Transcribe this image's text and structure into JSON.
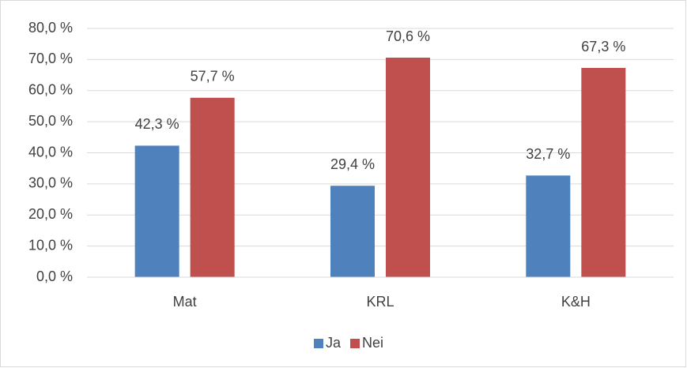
{
  "chart_data": {
    "type": "bar",
    "categories": [
      "Mat",
      "KRL",
      "K&H"
    ],
    "series": [
      {
        "name": "Ja",
        "color": "#4f81bd",
        "values": [
          42.3,
          29.4,
          32.7
        ],
        "value_labels": [
          "42,3 %",
          "29,4 %",
          "32,7 %"
        ]
      },
      {
        "name": "Nei",
        "color": "#c0504d",
        "values": [
          57.7,
          70.6,
          67.3
        ],
        "value_labels": [
          "57,7 %",
          "70,6 %",
          "67,3 %"
        ]
      }
    ],
    "ylim": [
      0,
      80
    ],
    "yticks": [
      {
        "value": 0,
        "label": "0,0 %"
      },
      {
        "value": 10,
        "label": "10,0 %"
      },
      {
        "value": 20,
        "label": "20,0 %"
      },
      {
        "value": 30,
        "label": "30,0 %"
      },
      {
        "value": 40,
        "label": "40,0 %"
      },
      {
        "value": 50,
        "label": "50,0 %"
      },
      {
        "value": 60,
        "label": "60,0 %"
      },
      {
        "value": 70,
        "label": "70,0 %"
      },
      {
        "value": 80,
        "label": "80,0 %"
      }
    ],
    "grid": true,
    "legend": "bottom"
  }
}
